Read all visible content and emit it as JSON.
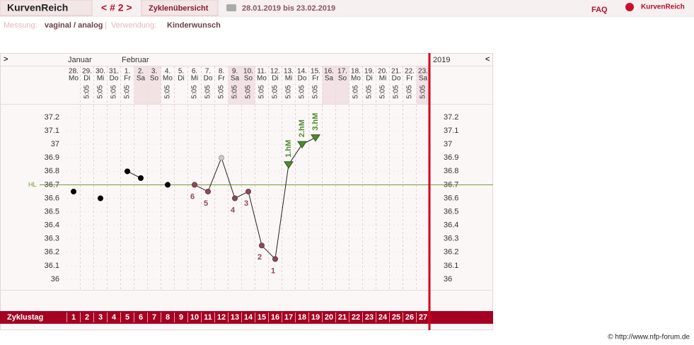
{
  "header": {
    "logo": "KurvenReich",
    "cycle_nav": "< # 2 >",
    "overview": "Zyklenübersicht",
    "range": "28.01.2019 bis 23.02.2019",
    "faq": "FAQ",
    "brand": "KurvenReich"
  },
  "info": {
    "measure_label": "Messung:",
    "measure": "vaginal / analog",
    "separator": "|",
    "use_label": "Verwendung:",
    "use": "Kinderwunsch"
  },
  "chart_data": {
    "type": "line",
    "nav_left": ">",
    "nav_right": "<",
    "year": "2019",
    "months": [
      "Januar",
      null,
      null,
      null,
      "Februar",
      null,
      null,
      null,
      null,
      null,
      null,
      null,
      null,
      null,
      null,
      null,
      null,
      null,
      null,
      null,
      null,
      null,
      null,
      null,
      null,
      null,
      null
    ],
    "dates": [
      "28.",
      "29.",
      "30.",
      "31.",
      "1.",
      "2.",
      "3.",
      "4.",
      "5.",
      "6.",
      "7.",
      "8.",
      "9.",
      "10.",
      "11.",
      "12.",
      "13.",
      "14.",
      "15.",
      "16.",
      "17.",
      "18.",
      "19.",
      "20.",
      "21.",
      "22.",
      "23."
    ],
    "weekdays": [
      "Mo",
      "Di",
      "Mi",
      "Do",
      "Fr",
      "Sa",
      "So",
      "Mo",
      "Di",
      "Mi",
      "Do",
      "Fr",
      "Sa",
      "So",
      "Mo",
      "Di",
      "Mi",
      "Do",
      "Fr",
      "Sa",
      "So",
      "Mo",
      "Di",
      "Mi",
      "Do",
      "Fr",
      "Sa"
    ],
    "weekend": [
      false,
      false,
      false,
      false,
      false,
      true,
      true,
      false,
      false,
      false,
      false,
      false,
      true,
      true,
      false,
      false,
      false,
      false,
      false,
      true,
      true,
      false,
      false,
      false,
      false,
      false,
      true
    ],
    "times": [
      null,
      "5:05",
      "5:05",
      "5:05",
      "5:05",
      null,
      null,
      "5:05",
      null,
      "5:05",
      "5:05",
      "5:05",
      "5:05",
      "5:05",
      "5:05",
      "5:05",
      "5:05",
      "5:05",
      "5:05",
      null,
      null,
      "5:05",
      "5:05",
      "5:05",
      "5:05",
      "5:05",
      "5:05"
    ],
    "values": [
      36.65,
      null,
      36.6,
      null,
      36.8,
      36.75,
      null,
      36.7,
      null,
      36.7,
      36.65,
      36.9,
      36.6,
      36.65,
      36.25,
      36.15,
      36.85,
      37.0,
      37.05,
      null,
      null,
      null,
      null,
      null,
      null,
      null,
      null
    ],
    "point_styles": [
      "normal",
      null,
      "normal",
      null,
      "normal",
      "normal",
      null,
      "normal",
      null,
      "counted",
      "counted",
      "excluded",
      "counted",
      "counted",
      "counted",
      "counted",
      "high",
      "high",
      "high",
      null,
      null,
      null,
      null,
      null,
      null,
      null,
      null
    ],
    "low_labels": [
      null,
      null,
      null,
      null,
      null,
      null,
      null,
      null,
      null,
      "6",
      "5",
      null,
      "4",
      "3",
      "2",
      "1",
      null,
      null,
      null,
      null,
      null,
      null,
      null,
      null,
      null,
      null,
      null
    ],
    "high_labels": [
      null,
      null,
      null,
      null,
      null,
      null,
      null,
      null,
      null,
      null,
      null,
      null,
      null,
      null,
      null,
      null,
      "1.hM",
      "2.hM",
      "3.hM",
      null,
      null,
      null,
      null,
      null,
      null,
      null,
      null
    ],
    "coverline": {
      "label": "HL",
      "value": 36.7,
      "color": "#6a9a3a"
    },
    "ylim": [
      36,
      37.2
    ],
    "yticks": [
      37.2,
      37.1,
      37,
      36.9,
      36.8,
      36.7,
      36.6,
      36.5,
      36.4,
      36.3,
      36.2,
      36.1,
      36
    ],
    "x_label": "Zyklustag",
    "cycle_days": [
      1,
      2,
      3,
      4,
      5,
      6,
      7,
      8,
      9,
      10,
      11,
      12,
      13,
      14,
      15,
      16,
      17,
      18,
      19,
      20,
      21,
      22,
      23,
      24,
      25,
      26,
      27
    ]
  },
  "footer": "© http://www.nfp-forum.de"
}
